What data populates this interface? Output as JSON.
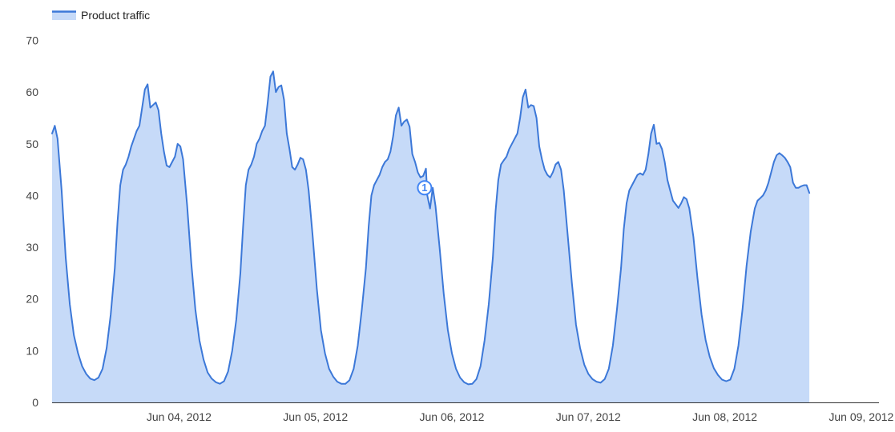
{
  "chart_data": {
    "type": "area",
    "title": "",
    "xlabel": "",
    "ylabel": "",
    "ylim": [
      0,
      70
    ],
    "yticks": [
      0,
      10,
      20,
      30,
      40,
      50,
      60,
      70
    ],
    "grid": false,
    "legend_position": "top-left",
    "x_unit": "days after Jun 03, 2012 00:00",
    "xlim": [
      0.07,
      6.13
    ],
    "x_ticks": [
      {
        "x": 1,
        "label": "Jun 04, 2012"
      },
      {
        "x": 2,
        "label": "Jun 05, 2012"
      },
      {
        "x": 3,
        "label": "Jun 06, 2012"
      },
      {
        "x": 4,
        "label": "Jun 07, 2012"
      },
      {
        "x": 5,
        "label": "Jun 08, 2012"
      },
      {
        "x": 6,
        "label": "Jun 09, 2012"
      }
    ],
    "series": [
      {
        "name": "Product traffic",
        "color": "#3c78d8",
        "fill": "#c6daf8",
        "points": [
          [
            0.07,
            52
          ],
          [
            0.09,
            53.5
          ],
          [
            0.11,
            51
          ],
          [
            0.14,
            41
          ],
          [
            0.17,
            28
          ],
          [
            0.2,
            19
          ],
          [
            0.23,
            13
          ],
          [
            0.26,
            9.5
          ],
          [
            0.29,
            7
          ],
          [
            0.32,
            5.5
          ],
          [
            0.35,
            4.6
          ],
          [
            0.38,
            4.3
          ],
          [
            0.41,
            4.8
          ],
          [
            0.44,
            6.5
          ],
          [
            0.47,
            10.5
          ],
          [
            0.5,
            17
          ],
          [
            0.53,
            26
          ],
          [
            0.55,
            35
          ],
          [
            0.57,
            42
          ],
          [
            0.59,
            45
          ],
          [
            0.61,
            46
          ],
          [
            0.63,
            47.5
          ],
          [
            0.65,
            49.5
          ],
          [
            0.67,
            51
          ],
          [
            0.69,
            52.5
          ],
          [
            0.71,
            53.5
          ],
          [
            0.73,
            57
          ],
          [
            0.75,
            60.5
          ],
          [
            0.77,
            61.5
          ],
          [
            0.79,
            57
          ],
          [
            0.81,
            57.5
          ],
          [
            0.83,
            58
          ],
          [
            0.85,
            56.5
          ],
          [
            0.87,
            52
          ],
          [
            0.89,
            48.5
          ],
          [
            0.91,
            45.8
          ],
          [
            0.93,
            45.5
          ],
          [
            0.95,
            46.5
          ],
          [
            0.97,
            47.5
          ],
          [
            0.99,
            50
          ],
          [
            1.01,
            49.5
          ],
          [
            1.03,
            47
          ],
          [
            1.06,
            38
          ],
          [
            1.09,
            27
          ],
          [
            1.12,
            18
          ],
          [
            1.15,
            12
          ],
          [
            1.18,
            8.3
          ],
          [
            1.21,
            5.8
          ],
          [
            1.24,
            4.6
          ],
          [
            1.27,
            3.9
          ],
          [
            1.3,
            3.6
          ],
          [
            1.33,
            4.1
          ],
          [
            1.36,
            6
          ],
          [
            1.39,
            10
          ],
          [
            1.42,
            16
          ],
          [
            1.45,
            25
          ],
          [
            1.47,
            34
          ],
          [
            1.49,
            42
          ],
          [
            1.51,
            45
          ],
          [
            1.53,
            46
          ],
          [
            1.55,
            47.5
          ],
          [
            1.57,
            50
          ],
          [
            1.59,
            51
          ],
          [
            1.61,
            52.5
          ],
          [
            1.63,
            53.5
          ],
          [
            1.65,
            58
          ],
          [
            1.67,
            63
          ],
          [
            1.69,
            64
          ],
          [
            1.71,
            60
          ],
          [
            1.73,
            61
          ],
          [
            1.75,
            61.3
          ],
          [
            1.77,
            58.5
          ],
          [
            1.79,
            52
          ],
          [
            1.81,
            49
          ],
          [
            1.83,
            45.5
          ],
          [
            1.85,
            45
          ],
          [
            1.87,
            46
          ],
          [
            1.89,
            47.3
          ],
          [
            1.91,
            47
          ],
          [
            1.93,
            45
          ],
          [
            1.95,
            41
          ],
          [
            1.98,
            32
          ],
          [
            2.01,
            22
          ],
          [
            2.04,
            14
          ],
          [
            2.07,
            9.5
          ],
          [
            2.1,
            6.5
          ],
          [
            2.13,
            5
          ],
          [
            2.16,
            4
          ],
          [
            2.19,
            3.6
          ],
          [
            2.22,
            3.6
          ],
          [
            2.25,
            4.3
          ],
          [
            2.28,
            6.5
          ],
          [
            2.31,
            11
          ],
          [
            2.34,
            18
          ],
          [
            2.37,
            26
          ],
          [
            2.39,
            34
          ],
          [
            2.41,
            40
          ],
          [
            2.43,
            42
          ],
          [
            2.45,
            43
          ],
          [
            2.47,
            44
          ],
          [
            2.49,
            45.5
          ],
          [
            2.51,
            46.5
          ],
          [
            2.53,
            47
          ],
          [
            2.55,
            48.5
          ],
          [
            2.57,
            51.5
          ],
          [
            2.59,
            55.5
          ],
          [
            2.61,
            57
          ],
          [
            2.63,
            53.5
          ],
          [
            2.65,
            54.3
          ],
          [
            2.67,
            54.7
          ],
          [
            2.69,
            53.3
          ],
          [
            2.71,
            48
          ],
          [
            2.73,
            46.5
          ],
          [
            2.75,
            44.5
          ],
          [
            2.77,
            43.5
          ],
          [
            2.79,
            43.8
          ],
          [
            2.81,
            45.2
          ],
          [
            2.82,
            40
          ],
          [
            2.84,
            37.5
          ],
          [
            2.86,
            41.5
          ],
          [
            2.88,
            38
          ],
          [
            2.91,
            30
          ],
          [
            2.94,
            21
          ],
          [
            2.97,
            14
          ],
          [
            3.0,
            9.5
          ],
          [
            3.03,
            6.5
          ],
          [
            3.06,
            4.8
          ],
          [
            3.09,
            3.9
          ],
          [
            3.12,
            3.5
          ],
          [
            3.15,
            3.6
          ],
          [
            3.18,
            4.5
          ],
          [
            3.21,
            7
          ],
          [
            3.24,
            12
          ],
          [
            3.27,
            19
          ],
          [
            3.3,
            28
          ],
          [
            3.32,
            37
          ],
          [
            3.34,
            43
          ],
          [
            3.36,
            46
          ],
          [
            3.38,
            46.8
          ],
          [
            3.4,
            47.5
          ],
          [
            3.42,
            49
          ],
          [
            3.44,
            50
          ],
          [
            3.46,
            51
          ],
          [
            3.48,
            52
          ],
          [
            3.5,
            55
          ],
          [
            3.52,
            59
          ],
          [
            3.54,
            60.5
          ],
          [
            3.56,
            57
          ],
          [
            3.58,
            57.5
          ],
          [
            3.6,
            57.3
          ],
          [
            3.62,
            55
          ],
          [
            3.64,
            49.5
          ],
          [
            3.66,
            47
          ],
          [
            3.68,
            45
          ],
          [
            3.7,
            44
          ],
          [
            3.72,
            43.5
          ],
          [
            3.74,
            44.5
          ],
          [
            3.76,
            46
          ],
          [
            3.78,
            46.5
          ],
          [
            3.8,
            45
          ],
          [
            3.82,
            41
          ],
          [
            3.85,
            32
          ],
          [
            3.88,
            23
          ],
          [
            3.91,
            15
          ],
          [
            3.94,
            10.5
          ],
          [
            3.97,
            7.3
          ],
          [
            4.0,
            5.5
          ],
          [
            4.03,
            4.5
          ],
          [
            4.06,
            4
          ],
          [
            4.09,
            3.8
          ],
          [
            4.12,
            4.5
          ],
          [
            4.15,
            6.5
          ],
          [
            4.18,
            11
          ],
          [
            4.21,
            18
          ],
          [
            4.24,
            26
          ],
          [
            4.26,
            33.5
          ],
          [
            4.28,
            38.5
          ],
          [
            4.3,
            41
          ],
          [
            4.32,
            42
          ],
          [
            4.34,
            43
          ],
          [
            4.36,
            44
          ],
          [
            4.38,
            44.3
          ],
          [
            4.4,
            44
          ],
          [
            4.42,
            45
          ],
          [
            4.44,
            48
          ],
          [
            4.46,
            52
          ],
          [
            4.48,
            53.7
          ],
          [
            4.5,
            50
          ],
          [
            4.52,
            50.2
          ],
          [
            4.54,
            49
          ],
          [
            4.56,
            46.5
          ],
          [
            4.58,
            43
          ],
          [
            4.6,
            41
          ],
          [
            4.62,
            39
          ],
          [
            4.64,
            38.3
          ],
          [
            4.66,
            37.6
          ],
          [
            4.68,
            38.5
          ],
          [
            4.7,
            39.7
          ],
          [
            4.72,
            39.3
          ],
          [
            4.74,
            37.5
          ],
          [
            4.77,
            32
          ],
          [
            4.8,
            24
          ],
          [
            4.83,
            17
          ],
          [
            4.86,
            12
          ],
          [
            4.89,
            8.8
          ],
          [
            4.92,
            6.6
          ],
          [
            4.95,
            5.3
          ],
          [
            4.98,
            4.4
          ],
          [
            5.01,
            4.1
          ],
          [
            5.04,
            4.4
          ],
          [
            5.07,
            6.5
          ],
          [
            5.1,
            11
          ],
          [
            5.13,
            18
          ],
          [
            5.16,
            26.5
          ],
          [
            5.19,
            33
          ],
          [
            5.22,
            37.5
          ],
          [
            5.24,
            39
          ],
          [
            5.26,
            39.5
          ],
          [
            5.28,
            40
          ],
          [
            5.3,
            41
          ],
          [
            5.32,
            42.5
          ],
          [
            5.34,
            44.5
          ],
          [
            5.36,
            46.5
          ],
          [
            5.38,
            47.8
          ],
          [
            5.4,
            48.2
          ],
          [
            5.42,
            47.8
          ],
          [
            5.44,
            47.3
          ],
          [
            5.46,
            46.5
          ],
          [
            5.48,
            45.5
          ],
          [
            5.5,
            42.5
          ],
          [
            5.52,
            41.5
          ],
          [
            5.54,
            41.5
          ],
          [
            5.56,
            41.8
          ],
          [
            5.58,
            42
          ],
          [
            5.6,
            42
          ],
          [
            5.62,
            40.5
          ]
        ]
      }
    ],
    "annotations": [
      {
        "x": 2.8,
        "y": 41.5,
        "label": "1"
      }
    ]
  },
  "legend": {
    "label": "Product traffic",
    "color": "#3c78d8"
  }
}
